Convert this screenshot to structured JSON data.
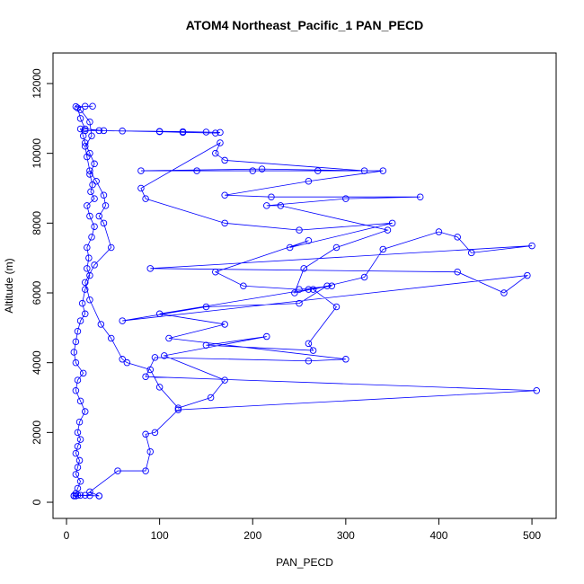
{
  "chart_data": {
    "type": "line",
    "title": "ATOM4 Northeast_Pacific_1 PAN_PECD",
    "xlabel": "PAN_PECD",
    "ylabel": "Altitude (m)",
    "color": "#0000ff",
    "markers": true,
    "xlim": [
      -14.5,
      526
    ],
    "ylim": [
      -463,
      12875
    ],
    "xticks": [
      0,
      100,
      200,
      300,
      400,
      500
    ],
    "yticks": [
      0,
      2000,
      4000,
      6000,
      8000,
      10000,
      12000
    ],
    "x": [
      10,
      15,
      25,
      35,
      20,
      8,
      10,
      12,
      15,
      10,
      12,
      14,
      10,
      12,
      15,
      12,
      14,
      20,
      15,
      10,
      12,
      18,
      10,
      8,
      10,
      12,
      15,
      20,
      17,
      20,
      25,
      22,
      24,
      22,
      27,
      30,
      25,
      22,
      30,
      26,
      28,
      25,
      30,
      25,
      20,
      18,
      15,
      20,
      35,
      60,
      100,
      125,
      150,
      165,
      160,
      125,
      100,
      40,
      20,
      15,
      12,
      20,
      28,
      10,
      15,
      25,
      27,
      20,
      22,
      25,
      32,
      40,
      42,
      35,
      40,
      48,
      30,
      20,
      25,
      37,
      48,
      60,
      65,
      90,
      100,
      120,
      155,
      170,
      105,
      215,
      150,
      265,
      260,
      290,
      265,
      320,
      340,
      400,
      420,
      435,
      500,
      90,
      420,
      470,
      495,
      60,
      150,
      250,
      280,
      245,
      255,
      290,
      345,
      230,
      215,
      300,
      380,
      220,
      170,
      260,
      340,
      270,
      200,
      140,
      80,
      210,
      320,
      170,
      160,
      165,
      80,
      85,
      170,
      250,
      350,
      240,
      260,
      160,
      190,
      250,
      285,
      260,
      100,
      170,
      110,
      300,
      260,
      95,
      85,
      505,
      120,
      95,
      85,
      90,
      85,
      55,
      25,
      35,
      12,
      8
    ],
    "values": [
      180,
      200,
      190,
      180,
      200,
      190,
      250,
      400,
      600,
      800,
      1000,
      1200,
      1400,
      1600,
      1800,
      2000,
      2300,
      2600,
      2900,
      3200,
      3500,
      3700,
      4000,
      4300,
      4600,
      4900,
      5200,
      5400,
      5700,
      6100,
      6500,
      6700,
      7000,
      7300,
      7600,
      7900,
      8200,
      8500,
      8700,
      8900,
      9100,
      9400,
      9700,
      10000,
      10300,
      10500,
      10700,
      10650,
      10650,
      10640,
      10630,
      10620,
      10610,
      10600,
      10580,
      10600,
      10620,
      10650,
      10700,
      11000,
      11300,
      11350,
      11350,
      11340,
      11250,
      10900,
      10500,
      10200,
      9900,
      9500,
      9200,
      8800,
      8500,
      8200,
      8000,
      7300,
      6800,
      6300,
      5800,
      5100,
      4700,
      4100,
      4000,
      3800,
      3300,
      2700,
      3000,
      3500,
      4200,
      4750,
      4500,
      4350,
      4550,
      5600,
      6100,
      6450,
      7250,
      7750,
      7600,
      7150,
      7350,
      6700,
      6600,
      6000,
      6500,
      5200,
      5600,
      5700,
      6200,
      6000,
      6700,
      7300,
      7800,
      8500,
      8500,
      8700,
      8750,
      8750,
      8800,
      9200,
      9500,
      9500,
      9500,
      9500,
      9500,
      9550,
      9500,
      9800,
      10000,
      10300,
      9000,
      8700,
      8000,
      7800,
      8000,
      7300,
      7500,
      6600,
      6200,
      6100,
      6200,
      6100,
      5400,
      5100,
      4700,
      4100,
      4050,
      4150,
      3600,
      3200,
      2650,
      2000,
      1950,
      1450,
      900,
      900,
      300,
      180,
      200,
      180
    ]
  }
}
